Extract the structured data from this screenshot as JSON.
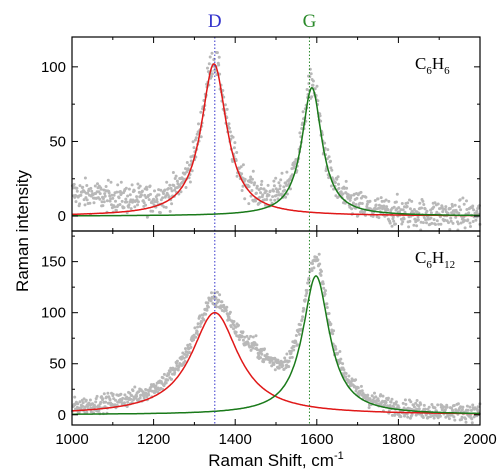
{
  "colors": {
    "scatter": "#b8b8b8",
    "d_fit": "#e01818",
    "g_fit": "#1a7a1a",
    "d_marker": "#3333cc",
    "g_marker": "#2a8a2a",
    "axis": "#000000"
  },
  "chart_data": {
    "type": "line",
    "shared_x_axis": {
      "label": "Raman Shift, cm",
      "label_superscript": "-1",
      "xlim": [
        1000,
        2000
      ],
      "ticks": [
        1000,
        1200,
        1400,
        1600,
        1800,
        2000
      ]
    },
    "ylabel": "Raman intensity",
    "markers": [
      {
        "label": "D",
        "x": 1350,
        "color": "#3333cc"
      },
      {
        "label": "G",
        "x": 1582,
        "color": "#2a8a2a"
      }
    ],
    "panels": [
      {
        "id": "top",
        "sample": {
          "base": "C",
          "sub1": "6",
          "mid": "H",
          "sub2": "6"
        },
        "ylim": [
          -10,
          120
        ],
        "yticks": [
          0,
          50,
          100
        ],
        "series": [
          {
            "type": "scatter",
            "noise": 7,
            "background": [
              [
                1000,
                14
              ],
              [
                1100,
                10
              ],
              [
                1200,
                5
              ],
              [
                1300,
                2
              ],
              [
                1450,
                0
              ],
              [
                1700,
                0
              ],
              [
                2000,
                0
              ]
            ],
            "peaks": [
              {
                "center": 1348,
                "height": 102,
                "hwhm": 38
              },
              {
                "center": 1588,
                "height": 87,
                "hwhm": 30
              }
            ]
          },
          {
            "type": "lorentzian",
            "center": 1348,
            "height": 102,
            "hwhm": 38
          },
          {
            "type": "lorentzian",
            "center": 1588,
            "height": 86,
            "hwhm": 30
          }
        ]
      },
      {
        "id": "bottom",
        "sample": {
          "base": "C",
          "sub1": "6",
          "mid": "H",
          "sub2": "12"
        },
        "ylim": [
          -10,
          180
        ],
        "yticks": [
          0,
          50,
          100,
          150
        ],
        "series": [
          {
            "type": "scatter",
            "noise": 6,
            "background": [
              [
                1000,
                4
              ],
              [
                1150,
                7
              ],
              [
                1250,
                12
              ],
              [
                1350,
                14
              ],
              [
                1450,
                30
              ],
              [
                1480,
                22
              ],
              [
                1530,
                8
              ],
              [
                1600,
                5
              ],
              [
                1700,
                2
              ],
              [
                1800,
                0
              ],
              [
                2000,
                0
              ]
            ],
            "peaks": [
              {
                "center": 1348,
                "height": 95,
                "hwhm": 65
              },
              {
                "center": 1598,
                "height": 140,
                "hwhm": 40
              }
            ]
          },
          {
            "type": "lorentzian",
            "center": 1350,
            "height": 100,
            "hwhm": 70
          },
          {
            "type": "lorentzian",
            "center": 1598,
            "height": 136,
            "hwhm": 40
          }
        ]
      }
    ]
  }
}
